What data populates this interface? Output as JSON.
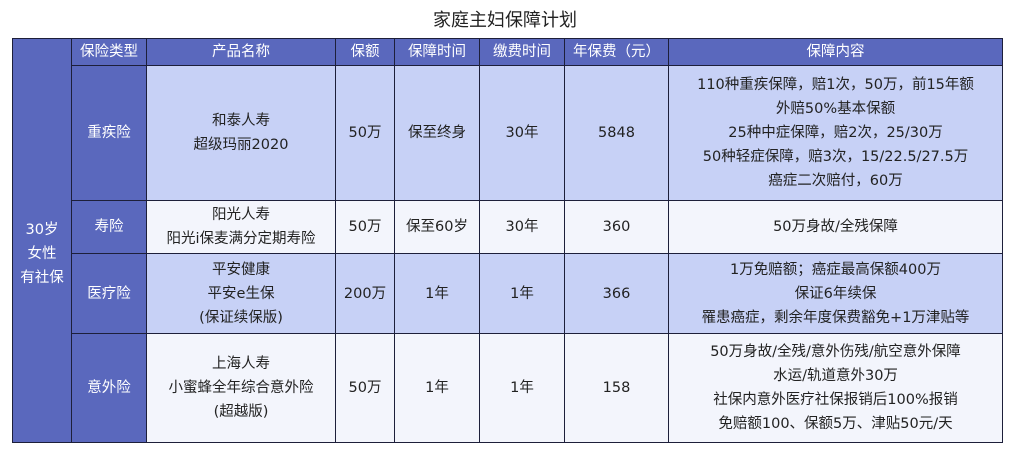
{
  "title": "家庭主妇保障计划",
  "headers": [
    "保险类型",
    "产品名称",
    "保额",
    "保障时间",
    "缴费时间",
    "年保费（元）",
    "保障内容"
  ],
  "profile": [
    "30岁",
    "女性",
    "有社保"
  ],
  "rows": [
    {
      "type": "重疾险",
      "product": [
        "和泰人寿",
        "超级玛丽2020"
      ],
      "amount": "50万",
      "term": "保至终身",
      "pay": "30年",
      "premium": "5848",
      "content": [
        "110种重疾保障，赔1次，50万，前15年额",
        "外赔50%基本保额",
        "25种中症保障，赔2次，25/30万",
        "50种轻症保障，赔3次，15/22.5/27.5万",
        "癌症二次赔付，60万"
      ]
    },
    {
      "type": "寿险",
      "product": [
        "阳光人寿",
        "阳光i保麦满分定期寿险"
      ],
      "amount": "50万",
      "term": "保至60岁",
      "pay": "30年",
      "premium": "360",
      "content": [
        "50万身故/全残保障"
      ]
    },
    {
      "type": "医疗险",
      "product": [
        "平安健康",
        "平安e生保",
        "(保证续保版)"
      ],
      "amount": "200万",
      "term": "1年",
      "pay": "1年",
      "premium": "366",
      "content": [
        "1万免赔额；癌症最高保额400万",
        "保证6年续保",
        "罹患癌症，剩余年度保费豁免+1万津贴等"
      ]
    },
    {
      "type": "意外险",
      "product": [
        "上海人寿",
        "小蜜蜂全年综合意外险",
        "(超越版)"
      ],
      "amount": "50万",
      "term": "1年",
      "pay": "1年",
      "premium": "158",
      "content": [
        "50万身故/全残/意外伤残/航空意外保障",
        "水运/轨道意外30万",
        "社保内意外医疗社保报销后100%报销",
        "免赔额100、保额5万、津贴50元/天"
      ]
    }
  ]
}
